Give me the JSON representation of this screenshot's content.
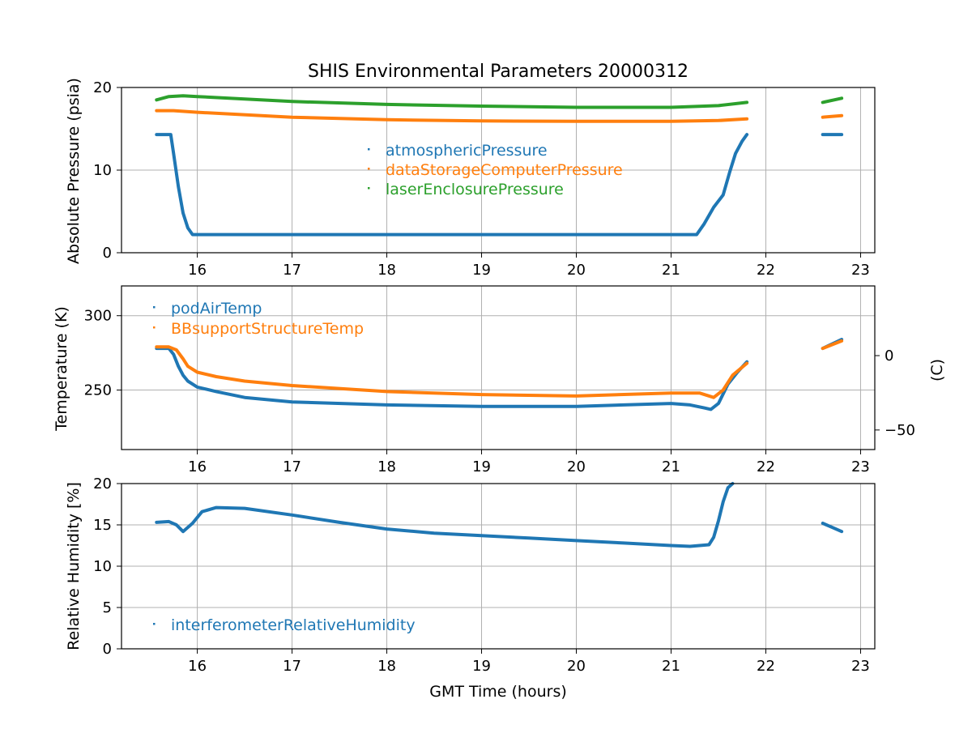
{
  "chart_data": [
    {
      "type": "scatter",
      "title": "SHIS Environmental Parameters 20000312",
      "xlabel": "",
      "ylabel": "Absolute Pressure (psia)",
      "xlim": [
        15.2,
        23.15
      ],
      "ylim": [
        0,
        20
      ],
      "xticks": [
        "16",
        "17",
        "18",
        "19",
        "20",
        "21",
        "22",
        "23"
      ],
      "yticks": [
        "0",
        "10",
        "20"
      ],
      "grid": true,
      "legend_position": "center",
      "series": [
        {
          "name": "atmosphericPressure",
          "color": "#1f77b4",
          "segments": [
            {
              "x": [
                15.57,
                15.72,
                15.75,
                15.8,
                15.85,
                15.9,
                15.95,
                16.0,
                17.0,
                18.0,
                19.0,
                20.0,
                21.0,
                21.27,
                21.35,
                21.45,
                21.55,
                21.62,
                21.68,
                21.75,
                21.8
              ],
              "y": [
                14.3,
                14.3,
                12.0,
                8.0,
                4.8,
                3.0,
                2.2,
                2.2,
                2.2,
                2.2,
                2.2,
                2.2,
                2.2,
                2.2,
                3.5,
                5.5,
                7.0,
                9.8,
                12.0,
                13.5,
                14.3
              ]
            },
            {
              "x": [
                22.6,
                22.8
              ],
              "y": [
                14.3,
                14.3
              ]
            }
          ]
        },
        {
          "name": "dataStorageComputerPressure",
          "color": "#ff7f0e",
          "segments": [
            {
              "x": [
                15.57,
                15.75,
                16.0,
                17.0,
                18.0,
                19.0,
                20.0,
                21.0,
                21.5,
                21.8
              ],
              "y": [
                17.2,
                17.2,
                17.0,
                16.4,
                16.1,
                15.95,
                15.9,
                15.9,
                16.0,
                16.2
              ]
            },
            {
              "x": [
                22.6,
                22.8
              ],
              "y": [
                16.4,
                16.6
              ]
            }
          ]
        },
        {
          "name": "laserEnclosurePressure",
          "color": "#2ca02c",
          "segments": [
            {
              "x": [
                15.57,
                15.7,
                15.85,
                16.0,
                17.0,
                18.0,
                19.0,
                20.0,
                21.0,
                21.5,
                21.8
              ],
              "y": [
                18.5,
                18.9,
                19.0,
                18.9,
                18.3,
                17.95,
                17.75,
                17.6,
                17.6,
                17.8,
                18.2
              ]
            },
            {
              "x": [
                22.6,
                22.8
              ],
              "y": [
                18.2,
                18.7
              ]
            }
          ]
        }
      ]
    },
    {
      "type": "scatter",
      "title": "",
      "xlabel": "",
      "ylabel": "Temperature (K)",
      "ylabel_right": "(C)",
      "xlim": [
        15.2,
        23.15
      ],
      "ylim": [
        210,
        320
      ],
      "ylim_right": [
        -63.15,
        46.85
      ],
      "xticks": [
        "16",
        "17",
        "18",
        "19",
        "20",
        "21",
        "22",
        "23"
      ],
      "yticks": [
        "250",
        "300"
      ],
      "yticks_right": [
        "−50",
        "0"
      ],
      "grid": true,
      "legend_position": "upper left",
      "series": [
        {
          "name": "podAirTemp",
          "color": "#1f77b4",
          "segments": [
            {
              "x": [
                15.57,
                15.7,
                15.75,
                15.8,
                15.85,
                15.9,
                16.0,
                16.2,
                16.5,
                17.0,
                18.0,
                19.0,
                20.0,
                21.0,
                21.2,
                21.35,
                21.42,
                21.5,
                21.6,
                21.7,
                21.8
              ],
              "y": [
                278,
                278,
                274,
                266,
                260,
                256,
                252,
                249,
                245,
                242,
                240,
                239,
                239,
                241,
                240,
                238,
                237,
                241,
                254,
                262,
                269
              ]
            },
            {
              "x": [
                22.6,
                22.8
              ],
              "y": [
                278,
                284
              ]
            }
          ]
        },
        {
          "name": "BBsupportStructureTemp",
          "color": "#ff7f0e",
          "segments": [
            {
              "x": [
                15.57,
                15.7,
                15.78,
                15.85,
                15.9,
                16.0,
                16.2,
                16.5,
                17.0,
                18.0,
                19.0,
                20.0,
                21.0,
                21.3,
                21.45,
                21.55,
                21.65,
                21.8
              ],
              "y": [
                279,
                279,
                277,
                271,
                266,
                262,
                259,
                256,
                253,
                249,
                247,
                246,
                248,
                248,
                245,
                250,
                260,
                268
              ]
            },
            {
              "x": [
                22.6,
                22.8
              ],
              "y": [
                278,
                283
              ]
            }
          ]
        }
      ]
    },
    {
      "type": "scatter",
      "title": "",
      "xlabel": "GMT Time (hours)",
      "ylabel": "Relative Humidity [%]",
      "xlim": [
        15.2,
        23.15
      ],
      "ylim": [
        0,
        20
      ],
      "xticks": [
        "16",
        "17",
        "18",
        "19",
        "20",
        "21",
        "22",
        "23"
      ],
      "yticks": [
        "0",
        "5",
        "10",
        "15",
        "20"
      ],
      "grid": true,
      "legend_position": "lower left",
      "series": [
        {
          "name": "interferometerRelativeHumidity",
          "color": "#1f77b4",
          "segments": [
            {
              "x": [
                15.57,
                15.7,
                15.78,
                15.85,
                15.95,
                16.05,
                16.2,
                16.5,
                17.0,
                17.5,
                18.0,
                18.5,
                19.0,
                19.5,
                20.0,
                20.5,
                21.0,
                21.2,
                21.4,
                21.45,
                21.5,
                21.55,
                21.6,
                21.65
              ],
              "y": [
                15.3,
                15.4,
                15.0,
                14.2,
                15.2,
                16.6,
                17.1,
                17.0,
                16.2,
                15.3,
                14.5,
                14.0,
                13.7,
                13.4,
                13.1,
                12.8,
                12.5,
                12.4,
                12.6,
                13.5,
                15.5,
                17.8,
                19.5,
                20.0
              ]
            },
            {
              "x": [
                22.6,
                22.7,
                22.8
              ],
              "y": [
                15.2,
                14.7,
                14.2
              ]
            }
          ]
        }
      ]
    }
  ]
}
